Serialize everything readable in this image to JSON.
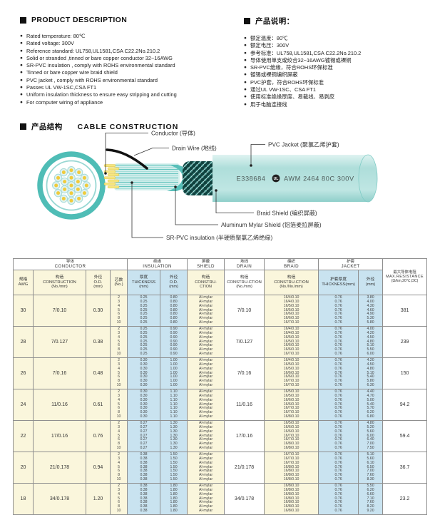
{
  "product_description": {
    "title": "PRODUCT  DESCRIPTION",
    "items": [
      "Rated temperature: 80℃",
      "Rated voltage: 300V",
      "Reference standard: UL758,UL1581,CSA C22.2No.210.2",
      "Solid or stranded ,tinned or bare copper conductor 32~16AWG",
      "SR-PVC insulation , comply with ROHS environmental standard",
      "Tinned or bare copper wire braid shield",
      "PVC jacket , comply with ROHS environmental standard",
      "Passes UL VW-1SC,CSA FT1",
      "Uniform insulation thickness to ensure easy stripping and cutting",
      "For computer wiring of appliance"
    ]
  },
  "product_description_cn": {
    "title": "产品说明：",
    "items": [
      "额定温度：80℃",
      "额定电压：300V",
      "参考标准：UL758,UL1581,CSA C22.2No.210.2",
      "导体使用单支或绞合32~16AWG镀锡或裸铜",
      "SR-PVC绝缘，符合ROHS环保标准",
      "镀锡或裸铜编织屏蔽",
      "PVC护套，符合ROHS环保标准",
      "通过UL VW-1SC、CSA FT1",
      "使用标准绝缘厚度、易裁线、易剥皮",
      "用于电脑连接线"
    ]
  },
  "construction": {
    "title_cn": "产品结构",
    "title_en": "CABLE  CONSTRUCTION",
    "labels": {
      "conductor": "Conductor (导体)",
      "drain_wire": "Drain Wire (地线)",
      "pvc_jacket": "PVC Jacket (聚氯乙烯护套)",
      "braid_shield": "Braid Shield (编织屏蔽)",
      "aluminum_mylar_shield": "Aluminum Mylar Shield (铝箔麦拉屏蔽)",
      "sr_pvc_insulation": "SR-PVC insulation (半硬质聚氯乙烯绝缘)"
    },
    "cable_print": {
      "cert_no": "E338684",
      "ul_mark": "UL",
      "spec": "AWM 2464 80C 300V"
    },
    "colors": {
      "teal": "#4FBDB6",
      "teal_light": "#BCE5E2",
      "conductor_yellow": "#F5E37B",
      "braid_dark": "#2E7D78",
      "drain_black": "#111111"
    }
  },
  "table": {
    "groups": [
      {
        "cn": "导体",
        "en": "CONDUCTOR"
      },
      {
        "cn": "绝缘",
        "en": "INSULATION"
      },
      {
        "cn": "屏蔽",
        "en": "SHIELD"
      },
      {
        "cn": "地线",
        "en": "DRAIN"
      },
      {
        "cn": "编织",
        "en": "BRAID"
      },
      {
        "cn": "护套",
        "en": "JACKET"
      }
    ],
    "resistance_header": {
      "cn": "最大导体电阻",
      "en": "MAX.RESISTANCE",
      "unit": "(Ω/km,20℃,DC)"
    },
    "subheaders": [
      {
        "cn": "规格",
        "en": "AWG",
        "unit": ""
      },
      {
        "cn": "构造",
        "en": "CONSTRUCTION",
        "unit": "(No./mm)"
      },
      {
        "cn": "外径",
        "en": "O.D.",
        "unit": "(mm)"
      },
      {
        "cn": "芯数",
        "en": "",
        "unit": "(No.)"
      },
      {
        "cn": "厚度",
        "en": "THICKNESS",
        "unit": "(mm)"
      },
      {
        "cn": "外径",
        "en": "O.D.",
        "unit": "(mm)"
      },
      {
        "cn": "构造",
        "en": "CONSTRU-",
        "unit": "CTION"
      },
      {
        "cn": "构造",
        "en": "CONSTRU-CTION",
        "unit": "(No./mm)"
      },
      {
        "cn": "构造",
        "en": "CONSTRU-CTION",
        "unit": "(No./No./mm)"
      },
      {
        "cn": "护套厚度",
        "en": "THICKNESS(mm)",
        "unit": ""
      },
      {
        "cn": "外径",
        "en": "(mm)",
        "unit": ""
      }
    ],
    "rows": [
      {
        "awg": "30",
        "construction": "7/0.10",
        "od": "0.30",
        "cores": [
          "2",
          "3",
          "4",
          "5",
          "6",
          "8",
          "10"
        ],
        "ins_thickness": "0.25",
        "ins_od": "0.80",
        "shield": "Al-mylar",
        "drain": "7/0.10",
        "braid": [
          "16/4/0.10",
          "16/4/0.10",
          "16/5/0.10",
          "16/5/0.10",
          "16/6/0.10",
          "16/6/0.10",
          "16/7/0.10"
        ],
        "jacket_thickness": "0.76",
        "jacket_od": [
          "3.80",
          "4.00",
          "4.30",
          "4.60",
          "4.90",
          "5.30",
          "5.80"
        ],
        "resistance": "381"
      },
      {
        "awg": "28",
        "construction": "7/0.127",
        "od": "0.38",
        "cores": [
          "2",
          "3",
          "4",
          "5",
          "6",
          "8",
          "10"
        ],
        "ins_thickness": "0.25",
        "ins_od": "0.90",
        "shield": "Al-mylar",
        "drain": "7/0.127",
        "braid": [
          "16/4/0.10",
          "16/4/0.10",
          "16/5/0.10",
          "16/5/0.10",
          "16/6/0.10",
          "16/6/0.10",
          "16/7/0.10"
        ],
        "jacket_thickness": "0.76",
        "jacket_od": [
          "4.00",
          "4.20",
          "4.50",
          "4.80",
          "5.10",
          "5.50",
          "6.00"
        ],
        "resistance": "239"
      },
      {
        "awg": "26",
        "construction": "7/0.16",
        "od": "0.48",
        "cores": [
          "2",
          "3",
          "4",
          "5",
          "6",
          "8",
          "10"
        ],
        "ins_thickness": "0.30",
        "ins_od": "1.00",
        "shield": "Al-mylar",
        "drain": "7/0.16",
        "braid": [
          "16/4/0.10",
          "16/5/0.10",
          "16/5/0.10",
          "16/6/0.10",
          "16/6/0.10",
          "16/7/0.10",
          "16/7/0.10"
        ],
        "jacket_thickness": "0.76",
        "jacket_od": [
          "4.20",
          "4.50",
          "4.80",
          "5.10",
          "5.40",
          "5.80",
          "6.30"
        ],
        "resistance": "150"
      },
      {
        "awg": "24",
        "construction": "11/0.16",
        "od": "0.61",
        "cores": [
          "2",
          "3",
          "4",
          "5",
          "6",
          "8",
          "10"
        ],
        "ins_thickness": "0.30",
        "ins_od": "1.10",
        "shield": "Al-mylar",
        "drain": "11/0.16",
        "braid": [
          "16/5/0.10",
          "16/5/0.10",
          "16/6/0.10",
          "16/6/0.10",
          "16/7/0.10",
          "16/7/0.10",
          "16/8/0.10"
        ],
        "jacket_thickness": "0.76",
        "jacket_od": [
          "4.40",
          "4.70",
          "5.00",
          "5.40",
          "5.70",
          "6.20",
          "6.80"
        ],
        "resistance": "94.2"
      },
      {
        "awg": "22",
        "construction": "17/0.16",
        "od": "0.76",
        "cores": [
          "2",
          "3",
          "4",
          "5",
          "6",
          "8",
          "10"
        ],
        "ins_thickness": "0.27",
        "ins_od": "1.30",
        "shield": "Al-mylar",
        "drain": "17/0.16",
        "braid": [
          "16/5/0.10",
          "16/6/0.10",
          "16/6/0.10",
          "16/7/0.10",
          "16/7/0.10",
          "16/8/0.10",
          "16/8/0.10"
        ],
        "jacket_thickness": "0.76",
        "jacket_od": [
          "4.80",
          "5.20",
          "5.60",
          "6.00",
          "6.40",
          "7.00",
          "7.50"
        ],
        "resistance": "59.4"
      },
      {
        "awg": "20",
        "construction": "21/0.178",
        "od": "0.94",
        "cores": [
          "2",
          "3",
          "4",
          "5",
          "6",
          "8",
          "10"
        ],
        "ins_thickness": "0.38",
        "ins_od": "1.50",
        "shield": "Al-mylar",
        "drain": "21/0.178",
        "braid": [
          "16/7/0.10",
          "16/7/0.10",
          "16/7/0.10",
          "16/8/0.10",
          "16/8/0.10",
          "16/8/0.10",
          "16/8/0.10"
        ],
        "jacket_thickness": "0.76",
        "jacket_od": [
          "5.10",
          "5.60",
          "6.10",
          "6.50",
          "7.00",
          "7.60",
          "8.30"
        ],
        "resistance": "36.7"
      },
      {
        "awg": "18",
        "construction": "34/0.178",
        "od": "1.20",
        "cores": [
          "2",
          "3",
          "4",
          "5",
          "6",
          "8",
          "10"
        ],
        "ins_thickness": "0.38",
        "ins_od": "1.80",
        "shield": "Al-mylar",
        "drain": "34/0.178",
        "braid": [
          "16/8/0.10",
          "16/8/0.10",
          "16/8/0.10",
          "16/8/0.10",
          "16/8/0.10",
          "16/8/0.10",
          "16/8/0.10"
        ],
        "jacket_thickness": "0.76",
        "jacket_od": [
          "5.50",
          "6.20",
          "6.60",
          "7.10",
          "7.60",
          "8.20",
          "9.20"
        ],
        "resistance": "23.2"
      }
    ]
  }
}
